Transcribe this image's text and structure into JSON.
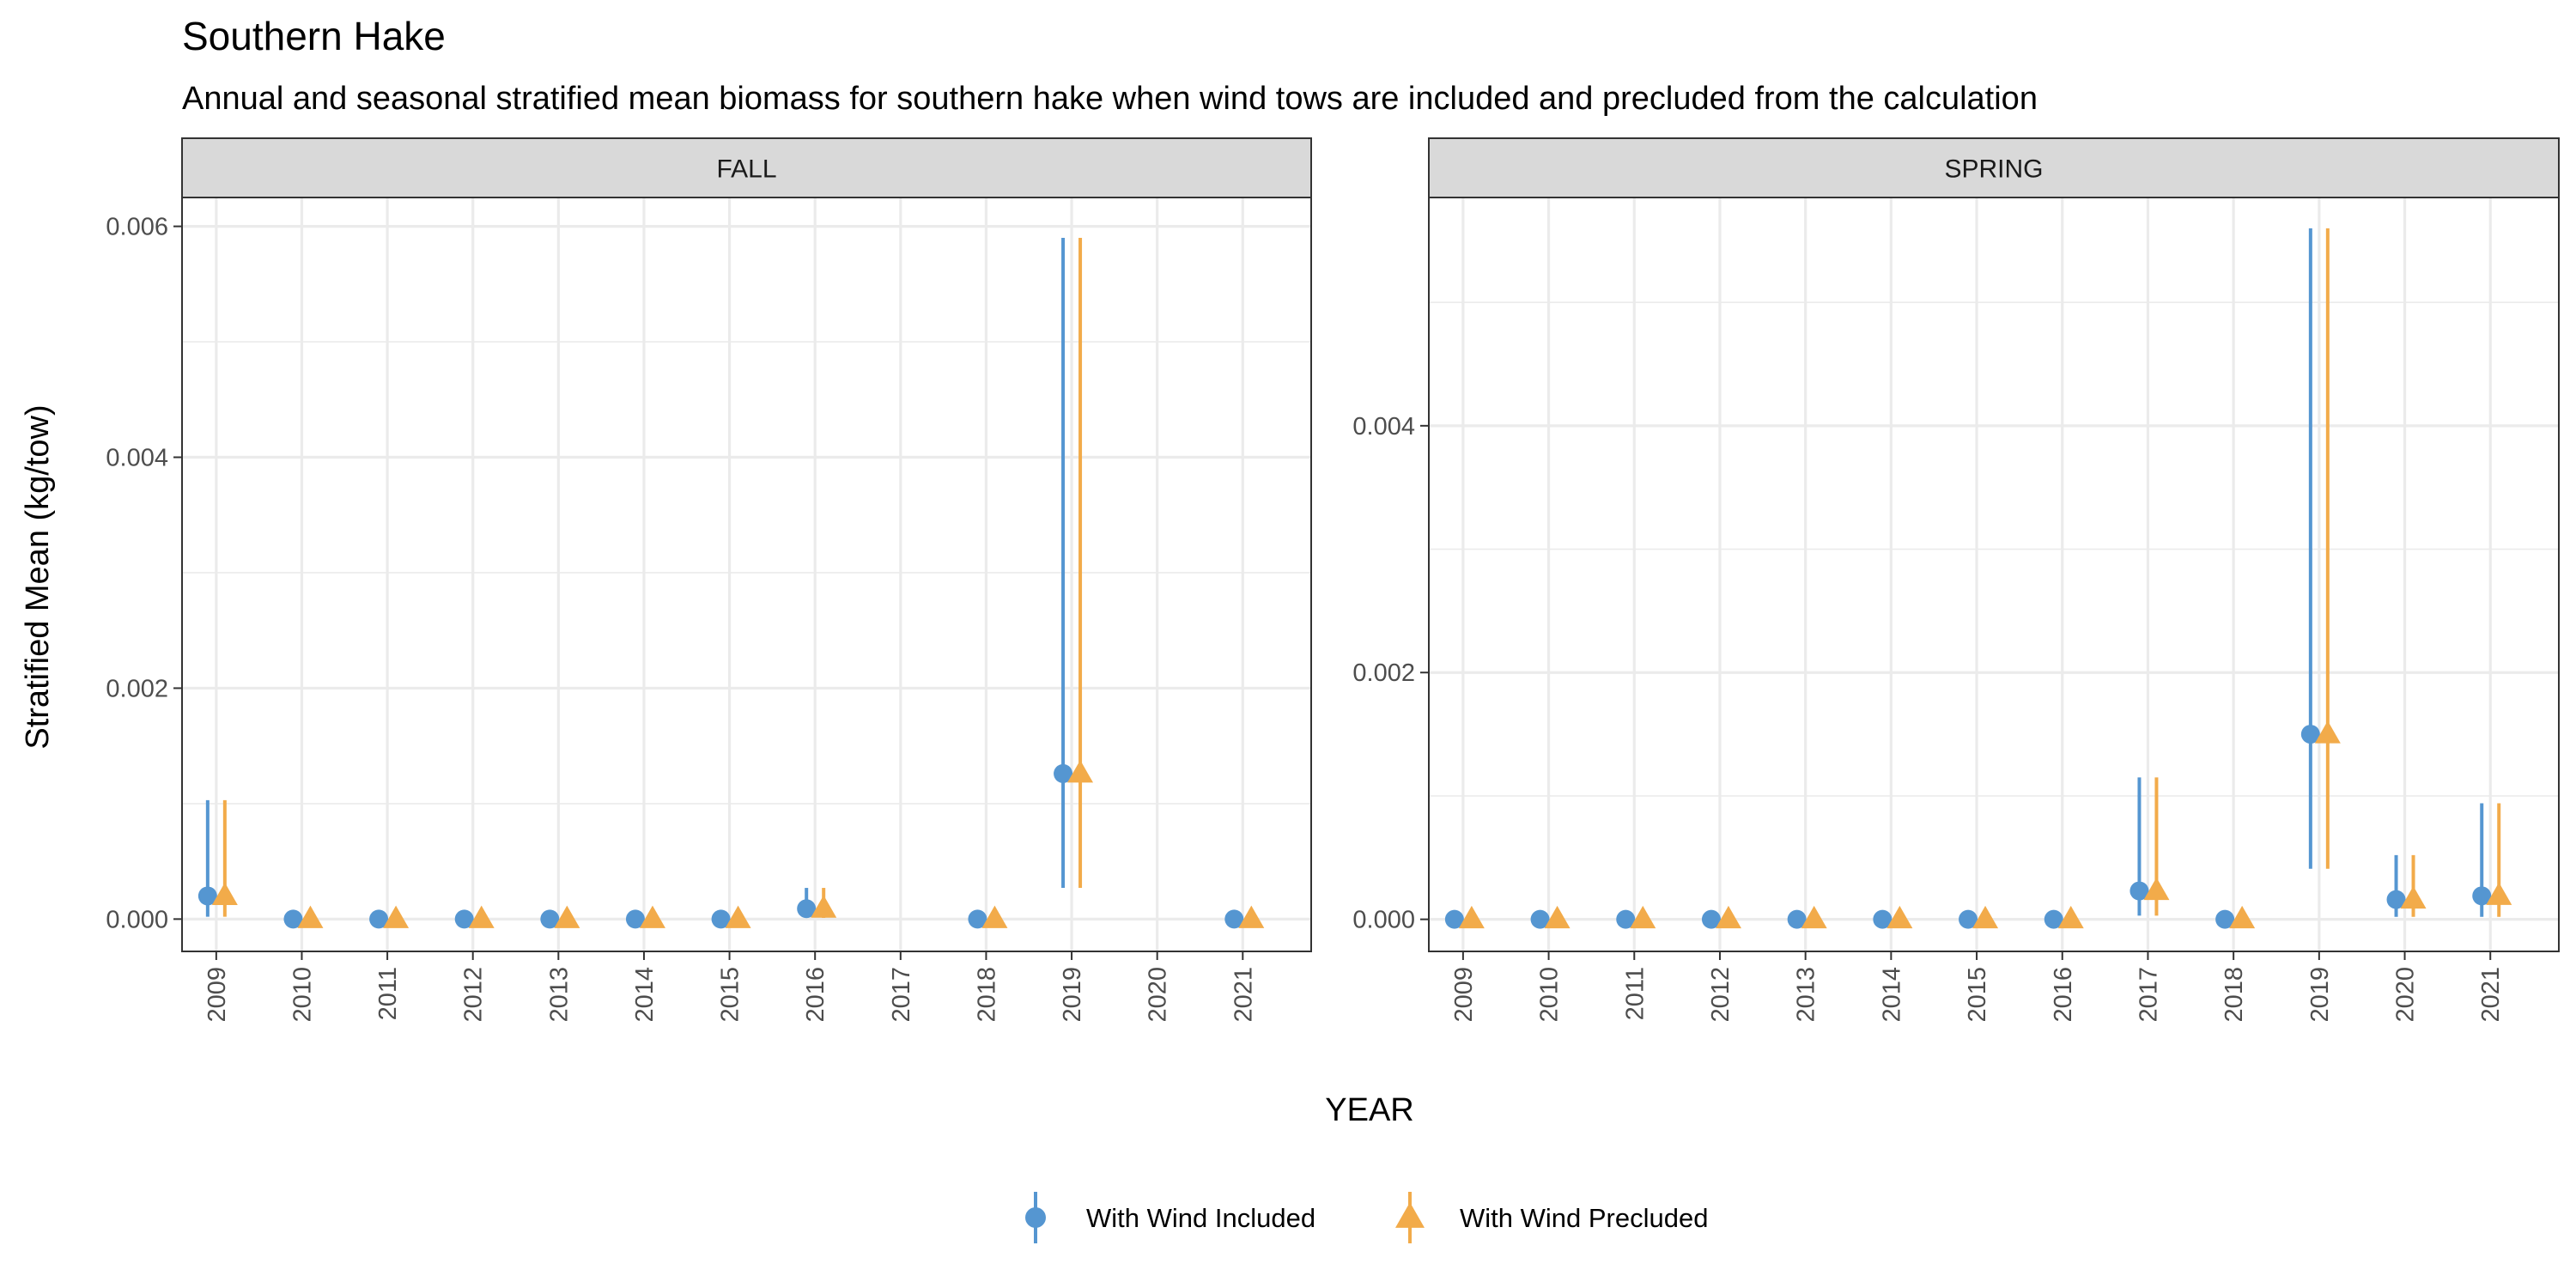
{
  "chart_data": {
    "type": "scatter",
    "title": "Southern Hake",
    "subtitle": "Annual and seasonal stratified mean biomass for southern hake when wind tows are included and precluded from the calculation",
    "xlabel": "YEAR",
    "ylabel": "Stratified Mean (kg/tow)",
    "grid": true,
    "legend_position": "bottom",
    "series": [
      {
        "name": "With Wind Included",
        "shape": "circle",
        "color": "#5596d1"
      },
      {
        "name": "With Wind Precluded",
        "shape": "triangle",
        "color": "#f2ab4a"
      }
    ],
    "panels": [
      {
        "label": "FALL",
        "x": [
          "2009",
          "2010",
          "2011",
          "2012",
          "2013",
          "2014",
          "2015",
          "2016",
          "2017",
          "2018",
          "2019",
          "2020",
          "2021"
        ],
        "ylim": [
          -0.00028,
          0.00625
        ],
        "yticks": [
          0,
          0.002,
          0.004,
          0.006
        ],
        "ytick_labels": [
          "0.000",
          "0.002",
          "0.004",
          "0.006"
        ],
        "points": [
          {
            "year": "2009",
            "mean": 0.0002,
            "lower": 2e-05,
            "upper": 0.00103
          },
          {
            "year": "2010",
            "mean": 0.0,
            "lower": 0.0,
            "upper": 0.0
          },
          {
            "year": "2011",
            "mean": 0.0,
            "lower": 0.0,
            "upper": 0.0
          },
          {
            "year": "2012",
            "mean": 0.0,
            "lower": 0.0,
            "upper": 0.0
          },
          {
            "year": "2013",
            "mean": 0.0,
            "lower": 0.0,
            "upper": 0.0
          },
          {
            "year": "2014",
            "mean": 0.0,
            "lower": 0.0,
            "upper": 0.0
          },
          {
            "year": "2015",
            "mean": 0.0,
            "lower": 0.0,
            "upper": 0.0
          },
          {
            "year": "2016",
            "mean": 9e-05,
            "lower": 1e-05,
            "upper": 0.00027
          },
          {
            "year": "2018",
            "mean": 0.0,
            "lower": 0.0,
            "upper": 0.0
          },
          {
            "year": "2019",
            "mean": 0.00126,
            "lower": 0.00027,
            "upper": 0.0059
          },
          {
            "year": "2021",
            "mean": 0.0,
            "lower": 0.0,
            "upper": 0.0
          }
        ]
      },
      {
        "label": "SPRING",
        "x": [
          "2009",
          "2010",
          "2011",
          "2012",
          "2013",
          "2014",
          "2015",
          "2016",
          "2017",
          "2018",
          "2019",
          "2020",
          "2021"
        ],
        "ylim": [
          -0.00026,
          0.00585
        ],
        "yticks": [
          0,
          0.002,
          0.004
        ],
        "ytick_labels": [
          "0.000",
          "0.002",
          "0.004"
        ],
        "points": [
          {
            "year": "2009",
            "mean": 0.0,
            "lower": 0.0,
            "upper": 0.0
          },
          {
            "year": "2010",
            "mean": 0.0,
            "lower": 0.0,
            "upper": 0.0
          },
          {
            "year": "2011",
            "mean": 0.0,
            "lower": 0.0,
            "upper": 0.0
          },
          {
            "year": "2012",
            "mean": 0.0,
            "lower": 0.0,
            "upper": 0.0
          },
          {
            "year": "2013",
            "mean": 0.0,
            "lower": 0.0,
            "upper": 0.0
          },
          {
            "year": "2014",
            "mean": 0.0,
            "lower": 0.0,
            "upper": 0.0
          },
          {
            "year": "2015",
            "mean": 0.0,
            "lower": 0.0,
            "upper": 0.0
          },
          {
            "year": "2016",
            "mean": 0.0,
            "lower": 0.0,
            "upper": 0.0
          },
          {
            "year": "2017",
            "mean": 0.00023,
            "lower": 3e-05,
            "upper": 0.00115
          },
          {
            "year": "2018",
            "mean": 0.0,
            "lower": 0.0,
            "upper": 0.0
          },
          {
            "year": "2019",
            "mean": 0.0015,
            "lower": 0.00041,
            "upper": 0.0056
          },
          {
            "year": "2020",
            "mean": 0.00016,
            "lower": 2e-05,
            "upper": 0.00052
          },
          {
            "year": "2021",
            "mean": 0.00019,
            "lower": 2e-05,
            "upper": 0.00094
          }
        ]
      }
    ]
  }
}
